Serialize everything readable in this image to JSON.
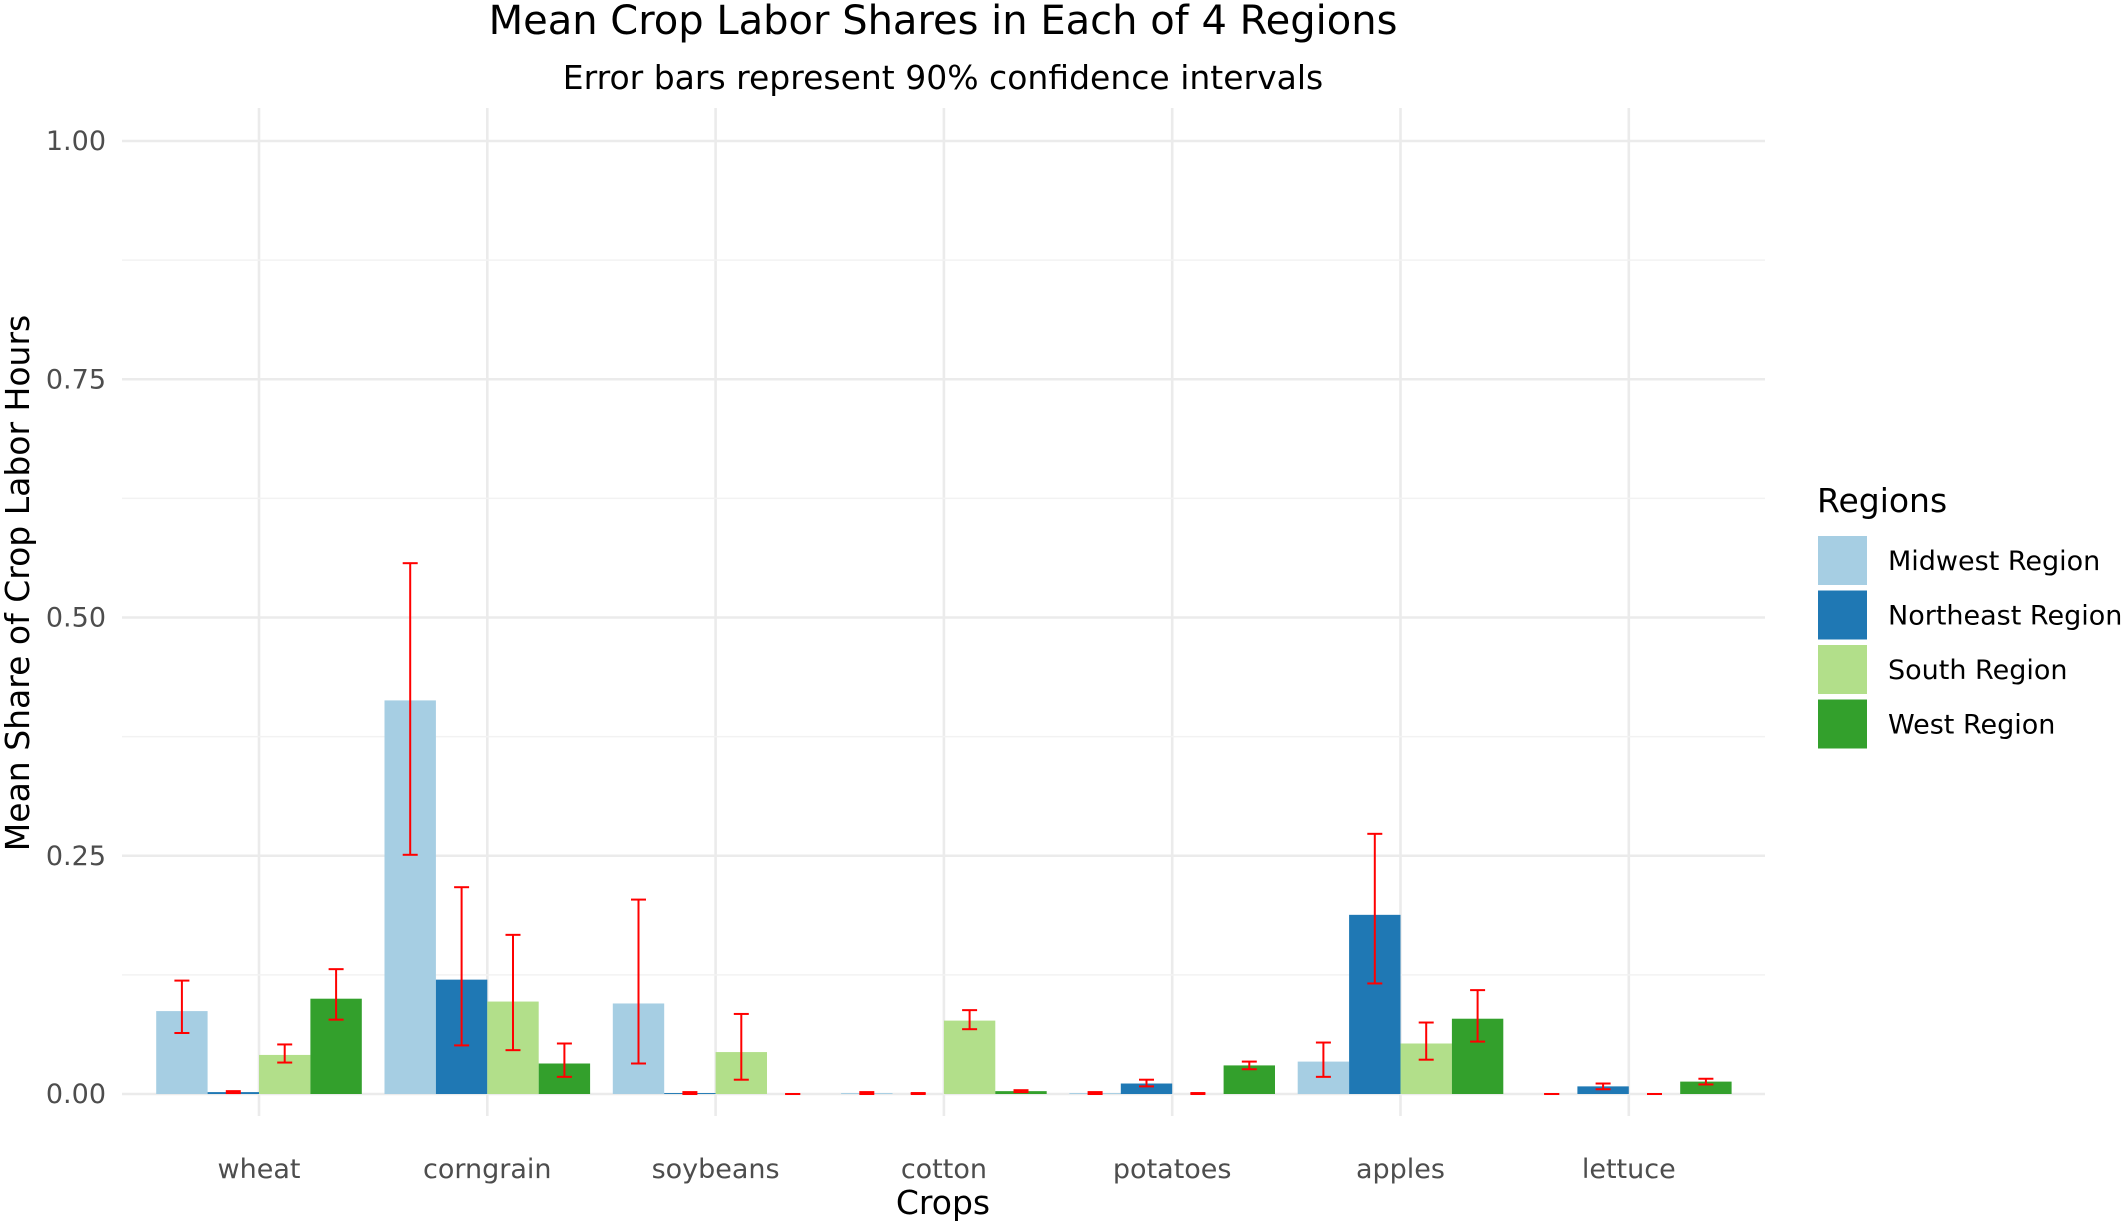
{
  "chart_data": {
    "type": "bar",
    "title": "Mean Crop Labor Shares in Each of 4 Regions",
    "subtitle": "Error bars represent 90% confidence intervals",
    "xlabel": "Crops",
    "ylabel": "Mean Share of Crop Labor Hours",
    "ylim": [
      0,
      1.0
    ],
    "yticks": [
      "0.00",
      "0.25",
      "0.50",
      "0.75",
      "1.00"
    ],
    "ytick_values": [
      0,
      0.25,
      0.5,
      0.75,
      1.0
    ],
    "grid": true,
    "legend": {
      "title": "Regions",
      "placement": "right"
    },
    "categories": [
      "wheat",
      "corngrain",
      "soybeans",
      "cotton",
      "potatoes",
      "apples",
      "lettuce"
    ],
    "series": [
      {
        "name": "Midwest Region",
        "color": "#a6cee3",
        "values": [
          0.087,
          0.413,
          0.095,
          0.001,
          0.001,
          0.034,
          0.0
        ],
        "ci_low": [
          0.064,
          0.251,
          0.032,
          0.0,
          0.0,
          0.018,
          0.0
        ],
        "ci_high": [
          0.119,
          0.557,
          0.204,
          0.002,
          0.002,
          0.054,
          0.0
        ]
      },
      {
        "name": "Northeast Region",
        "color": "#1f78b4",
        "values": [
          0.002,
          0.12,
          0.001,
          0.0,
          0.011,
          0.188,
          0.008
        ],
        "ci_low": [
          0.001,
          0.051,
          0.0,
          0.0,
          0.008,
          0.116,
          0.005
        ],
        "ci_high": [
          0.003,
          0.217,
          0.002,
          0.001,
          0.015,
          0.273,
          0.011
        ]
      },
      {
        "name": "South Region",
        "color": "#b2df8a",
        "values": [
          0.041,
          0.097,
          0.044,
          0.077,
          0.0,
          0.053,
          0.0
        ],
        "ci_low": [
          0.033,
          0.046,
          0.015,
          0.068,
          0.0,
          0.036,
          0.0
        ],
        "ci_high": [
          0.052,
          0.167,
          0.084,
          0.088,
          0.001,
          0.075,
          0.0
        ]
      },
      {
        "name": "West Region",
        "color": "#33a02c",
        "values": [
          0.1,
          0.032,
          0.0,
          0.003,
          0.03,
          0.079,
          0.013
        ],
        "ci_low": [
          0.078,
          0.018,
          0.0,
          0.002,
          0.026,
          0.055,
          0.01
        ],
        "ci_high": [
          0.131,
          0.053,
          0.0,
          0.004,
          0.034,
          0.109,
          0.016
        ]
      }
    ]
  }
}
